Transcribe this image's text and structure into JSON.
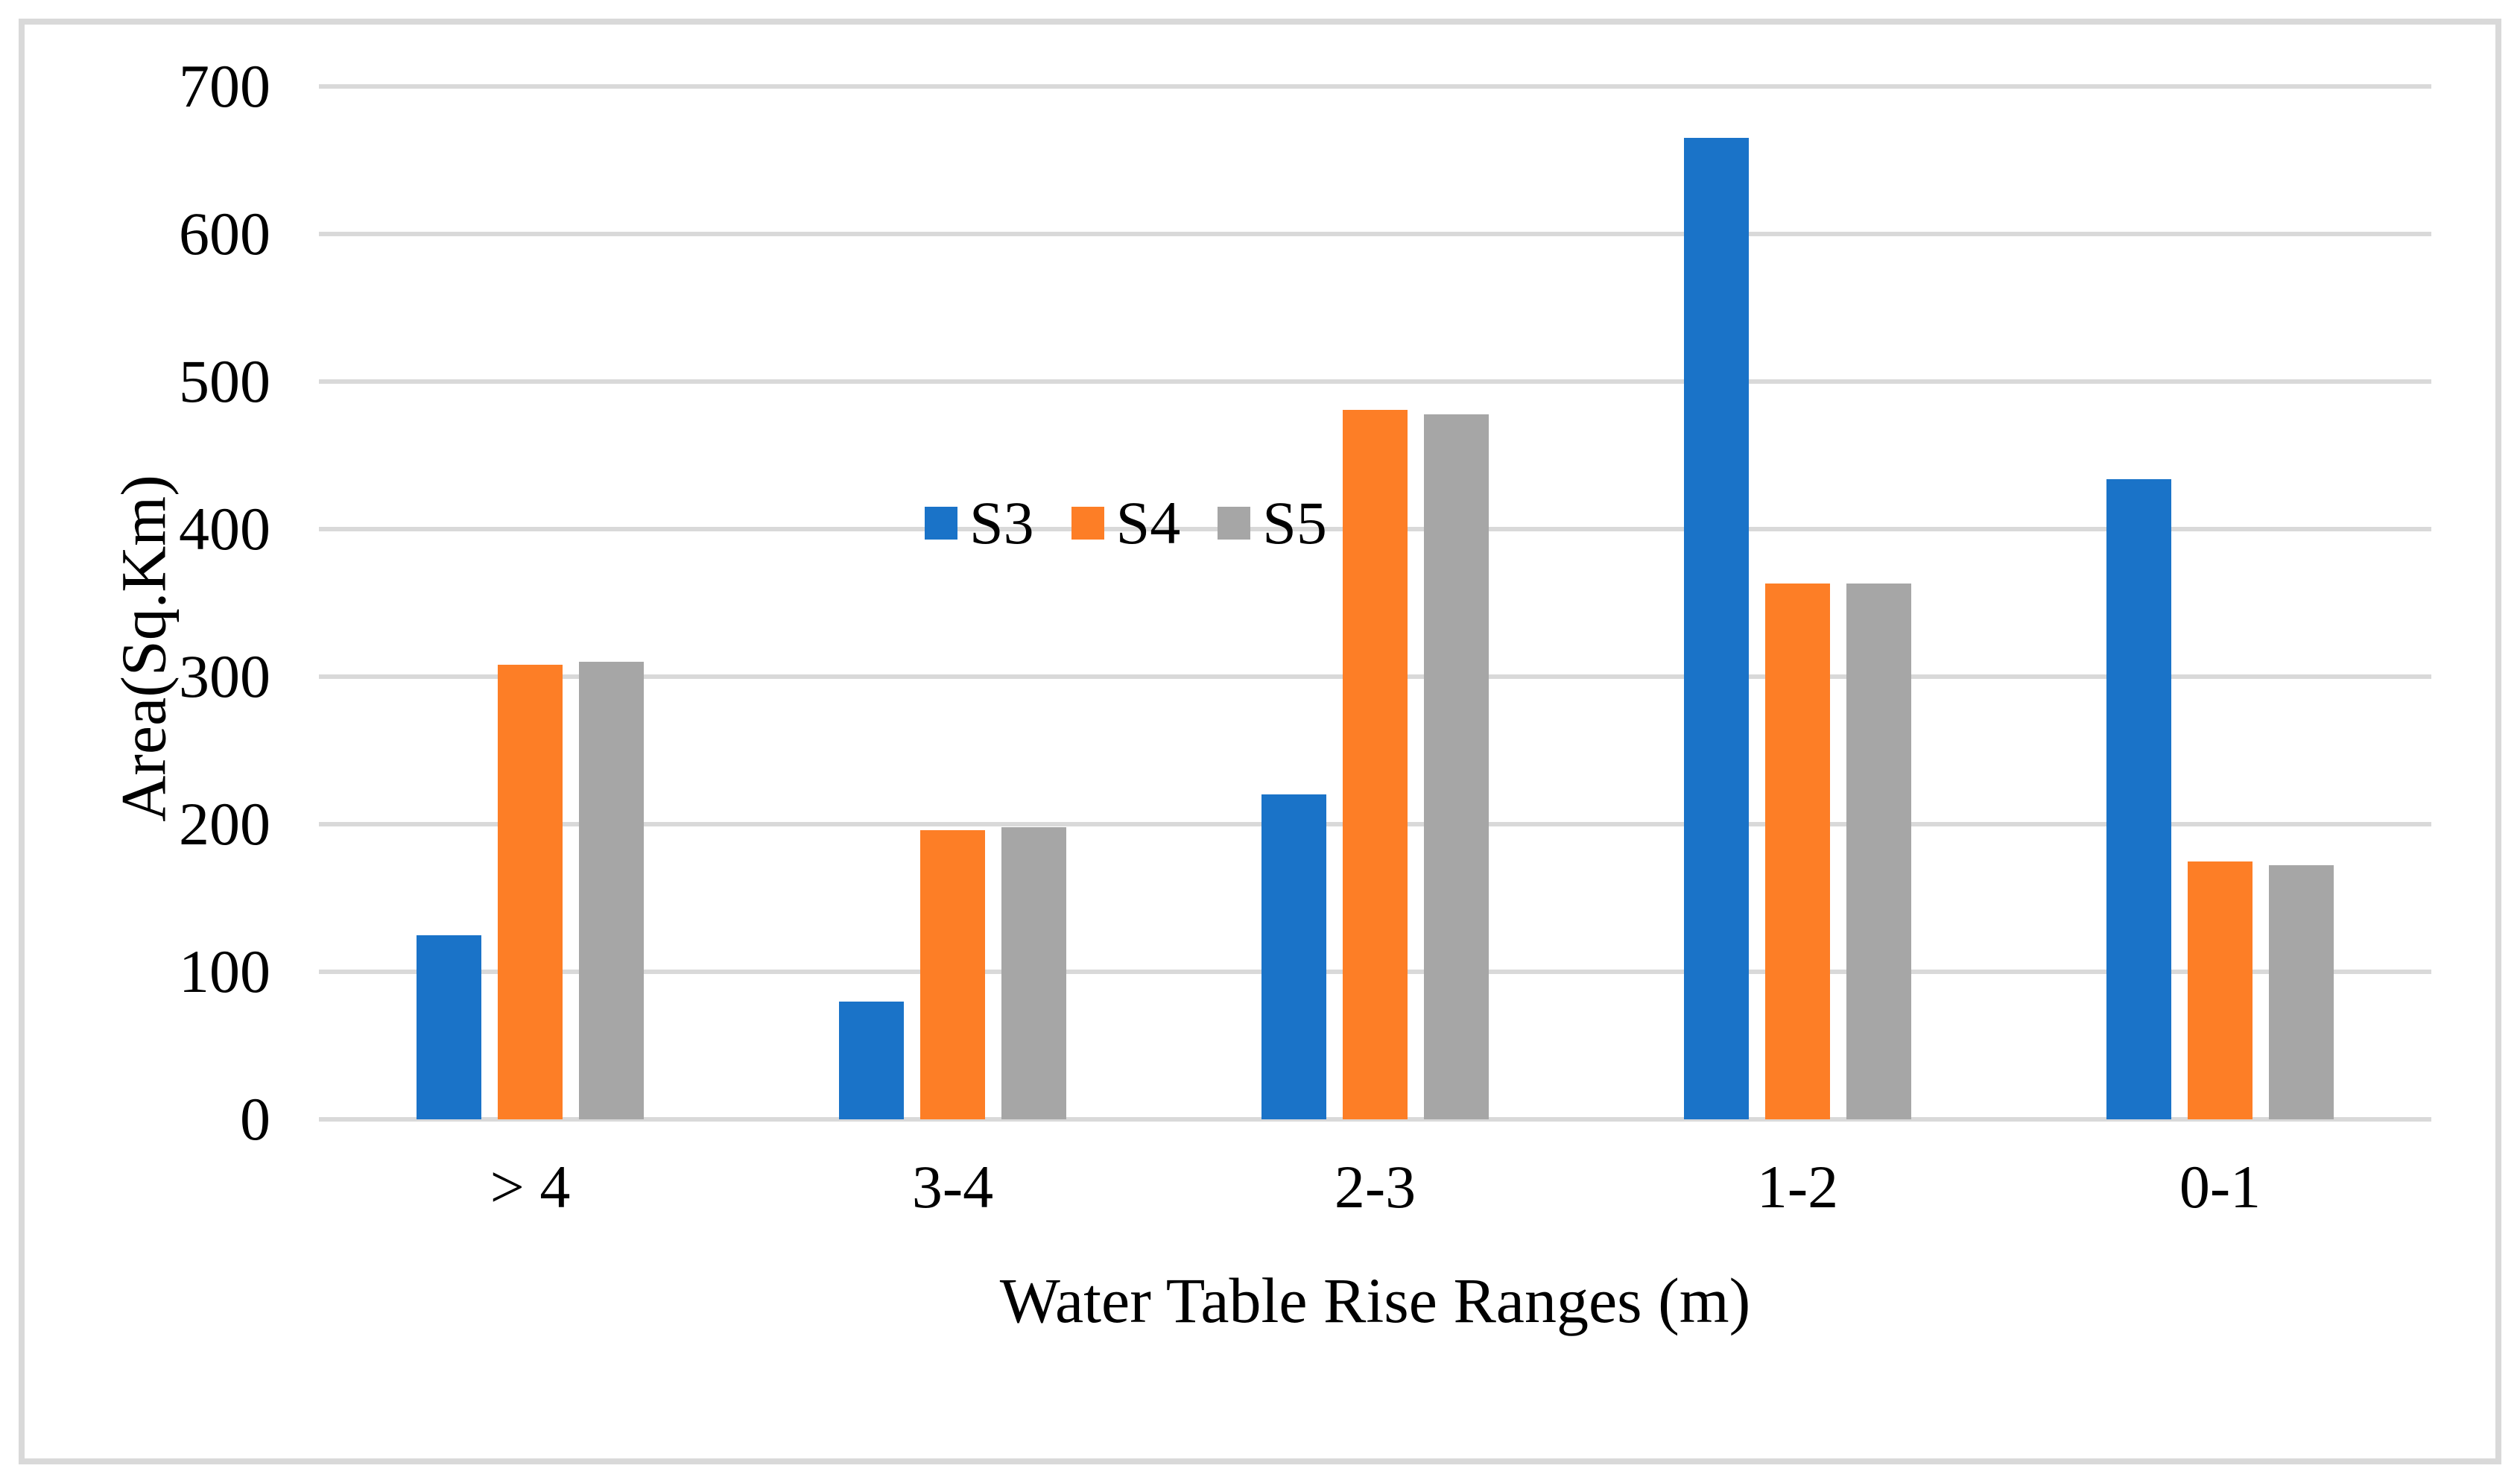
{
  "chart_data": {
    "type": "bar",
    "title": "",
    "categories": [
      "> 4",
      "3-4",
      "2-3",
      "1-2",
      "0-1"
    ],
    "series": [
      {
        "name": "S3",
        "color": "#1A73C8",
        "values": [
          125,
          80,
          220,
          665,
          434
        ]
      },
      {
        "name": "S4",
        "color": "#FD7E26",
        "values": [
          308,
          196,
          481,
          363,
          175
        ]
      },
      {
        "name": "S5",
        "color": "#A6A6A6",
        "values": [
          310,
          198,
          478,
          363,
          172
        ]
      }
    ],
    "xlabel": "Water Table Rise Ranges (m)",
    "ylabel": "Area(Sq.Km)",
    "ylim": [
      0,
      700
    ],
    "yticks": [
      0,
      100,
      200,
      300,
      400,
      500,
      600,
      700
    ],
    "grid": "horizontal-only",
    "legend_position": "inside-plot-upper-left",
    "colors": {
      "gridline": "#D9D9D9",
      "frame_border": "#D9D9D9",
      "background": "#FFFFFF",
      "text": "#000000"
    }
  }
}
